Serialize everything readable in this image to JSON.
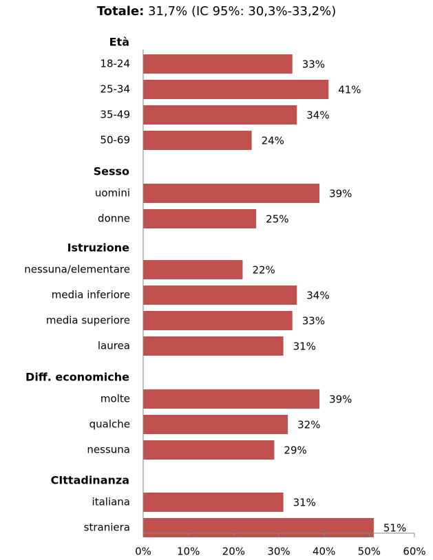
{
  "title": {
    "bold": "Totale:",
    "rest": " 31,7% (IC 95%: 30,3%-33,2%)"
  },
  "chart_data": {
    "type": "bar",
    "orientation": "horizontal",
    "title": "Totale: 31,7% (IC 95%: 30,3%-33,2%)",
    "xlim": [
      0,
      60
    ],
    "x_ticks": [
      "0%",
      "10%",
      "20%",
      "30%",
      "40%",
      "50%",
      "60%"
    ],
    "bar_color": "#c0504d",
    "groups": [
      {
        "name": "Età",
        "categories": [
          "18-24",
          "25-34",
          "35-49",
          "50-69"
        ],
        "values": [
          33,
          41,
          34,
          24
        ],
        "labels": [
          "33%",
          "41%",
          "34%",
          "24%"
        ]
      },
      {
        "name": "Sesso",
        "categories": [
          "uomini",
          "donne"
        ],
        "values": [
          39,
          25
        ],
        "labels": [
          "39%",
          "25%"
        ]
      },
      {
        "name": "Istruzione",
        "categories": [
          "nessuna/elementare",
          "media inferiore",
          "media superiore",
          "laurea"
        ],
        "values": [
          22,
          34,
          33,
          31
        ],
        "labels": [
          "22%",
          "34%",
          "33%",
          "31%"
        ]
      },
      {
        "name": "Diff. economiche",
        "categories": [
          "molte",
          "qualche",
          "nessuna"
        ],
        "values": [
          39,
          32,
          29
        ],
        "labels": [
          "39%",
          "32%",
          "29%"
        ]
      },
      {
        "name": "CIttadinanza",
        "categories": [
          "italiana",
          "straniera"
        ],
        "values": [
          31,
          51
        ],
        "labels": [
          "31%",
          "51%"
        ]
      }
    ]
  }
}
